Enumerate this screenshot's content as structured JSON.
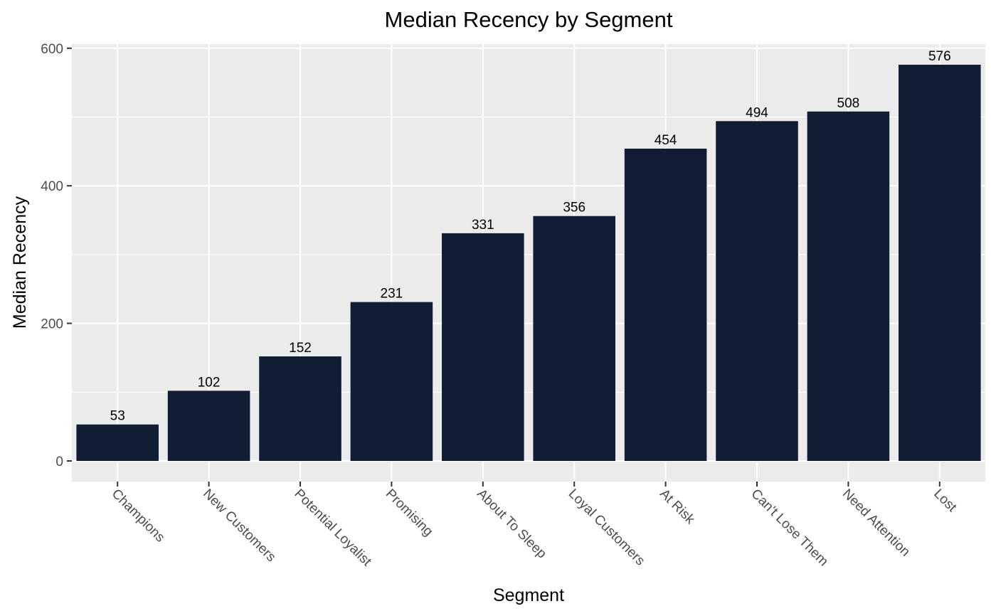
{
  "chart_data": {
    "type": "bar",
    "title": "Median Recency  by Segment",
    "xlabel": "Segment",
    "ylabel": "Median Recency",
    "categories": [
      "Champions",
      "New Customers",
      "Potential Loyalist",
      "Promising",
      "About To Sleep",
      "Loyal Customers",
      "At Risk",
      "Can't Lose Them",
      "Need Attention",
      "Lost"
    ],
    "values": [
      53,
      102,
      152,
      231,
      331,
      356,
      454,
      494,
      508,
      576
    ],
    "data_labels": [
      "53",
      "102",
      "152",
      "231",
      "331",
      "356",
      "454",
      "494",
      "508",
      "576"
    ],
    "yticks": [
      0,
      200,
      400,
      600
    ],
    "ytick_labels": [
      "0",
      "200",
      "400",
      "600"
    ],
    "ylim": [
      -30,
      606
    ],
    "grid": true,
    "legend": "none",
    "x_tick_rotation_deg": -45
  },
  "colors": {
    "bar": "#111c35",
    "panel_background": "#ebebeb",
    "grid": "#ffffff",
    "tick_text": "#4d4d4d",
    "text": "#000000"
  }
}
